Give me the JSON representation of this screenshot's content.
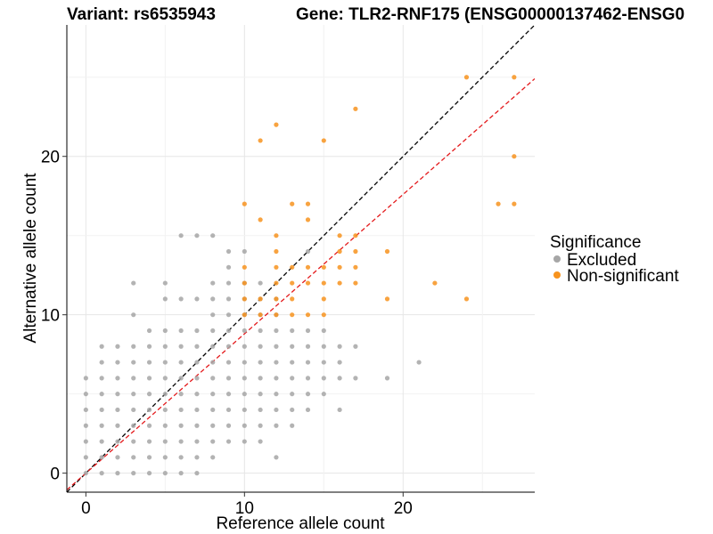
{
  "chart_data": {
    "type": "scatter",
    "title_left": "Variant: rs6535943",
    "title_right": "Gene: TLR2-RNF175 (ENSG00000137462-ENSG0",
    "xlabel": "Reference allele count",
    "ylabel": "Alternative allele count",
    "xlim": [
      -1.2,
      28.3
    ],
    "ylim": [
      -1.2,
      28.3
    ],
    "x_ticks": [
      0,
      10,
      20
    ],
    "y_ticks": [
      0,
      10,
      20
    ],
    "grid": true,
    "legend": {
      "title": "Significance",
      "placement": "right",
      "entries": [
        {
          "label": "Excluded",
          "color": "#a6a6a6"
        },
        {
          "label": "Non-significant",
          "color": "#f7931e"
        }
      ]
    },
    "reference_lines": [
      {
        "slope": 1.0,
        "intercept": 0,
        "color": "#000000",
        "style": "dashed"
      },
      {
        "slope": 0.88,
        "intercept": 0,
        "color": "#e41a1c",
        "style": "dashed"
      }
    ],
    "series": [
      {
        "name": "Excluded",
        "color": "#a6a6a6",
        "points": [
          [
            0,
            0
          ],
          [
            0,
            1
          ],
          [
            0,
            2
          ],
          [
            0,
            3
          ],
          [
            0,
            4
          ],
          [
            0,
            5
          ],
          [
            0,
            6
          ],
          [
            1,
            0
          ],
          [
            1,
            1
          ],
          [
            1,
            2
          ],
          [
            1,
            3
          ],
          [
            1,
            4
          ],
          [
            1,
            5
          ],
          [
            1,
            6
          ],
          [
            1,
            7
          ],
          [
            1,
            8
          ],
          [
            2,
            0
          ],
          [
            2,
            1
          ],
          [
            2,
            2
          ],
          [
            2,
            3
          ],
          [
            2,
            4
          ],
          [
            2,
            5
          ],
          [
            2,
            6
          ],
          [
            2,
            7
          ],
          [
            2,
            8
          ],
          [
            3,
            0
          ],
          [
            3,
            1
          ],
          [
            3,
            2
          ],
          [
            3,
            3
          ],
          [
            3,
            4
          ],
          [
            3,
            5
          ],
          [
            3,
            6
          ],
          [
            3,
            7
          ],
          [
            3,
            8
          ],
          [
            3,
            10
          ],
          [
            3,
            12
          ],
          [
            4,
            0
          ],
          [
            4,
            1
          ],
          [
            4,
            2
          ],
          [
            4,
            3
          ],
          [
            4,
            4
          ],
          [
            4,
            5
          ],
          [
            4,
            6
          ],
          [
            4,
            7
          ],
          [
            4,
            8
          ],
          [
            4,
            9
          ],
          [
            5,
            0
          ],
          [
            5,
            1
          ],
          [
            5,
            2
          ],
          [
            5,
            3
          ],
          [
            5,
            4
          ],
          [
            5,
            5
          ],
          [
            5,
            6
          ],
          [
            5,
            7
          ],
          [
            5,
            8
          ],
          [
            5,
            9
          ],
          [
            5,
            11
          ],
          [
            5,
            12
          ],
          [
            6,
            0
          ],
          [
            6,
            1
          ],
          [
            6,
            2
          ],
          [
            6,
            3
          ],
          [
            6,
            4
          ],
          [
            6,
            5
          ],
          [
            6,
            6
          ],
          [
            6,
            7
          ],
          [
            6,
            8
          ],
          [
            6,
            9
          ],
          [
            6,
            11
          ],
          [
            6,
            15
          ],
          [
            7,
            0
          ],
          [
            7,
            1
          ],
          [
            7,
            2
          ],
          [
            7,
            3
          ],
          [
            7,
            4
          ],
          [
            7,
            5
          ],
          [
            7,
            6
          ],
          [
            7,
            7
          ],
          [
            7,
            8
          ],
          [
            7,
            9
          ],
          [
            7,
            11
          ],
          [
            7,
            15
          ],
          [
            8,
            1
          ],
          [
            8,
            2
          ],
          [
            8,
            3
          ],
          [
            8,
            4
          ],
          [
            8,
            5
          ],
          [
            8,
            6
          ],
          [
            8,
            7
          ],
          [
            8,
            8
          ],
          [
            8,
            9
          ],
          [
            8,
            10
          ],
          [
            8,
            11
          ],
          [
            8,
            12
          ],
          [
            8,
            15
          ],
          [
            9,
            2
          ],
          [
            9,
            3
          ],
          [
            9,
            4
          ],
          [
            9,
            5
          ],
          [
            9,
            6
          ],
          [
            9,
            7
          ],
          [
            9,
            8
          ],
          [
            9,
            9
          ],
          [
            9,
            10
          ],
          [
            9,
            11
          ],
          [
            9,
            12
          ],
          [
            9,
            13
          ],
          [
            9,
            14
          ],
          [
            10,
            2
          ],
          [
            10,
            3
          ],
          [
            10,
            4
          ],
          [
            10,
            5
          ],
          [
            10,
            6
          ],
          [
            10,
            7
          ],
          [
            10,
            8
          ],
          [
            10,
            9
          ],
          [
            10,
            10
          ],
          [
            10,
            11
          ],
          [
            10,
            12
          ],
          [
            10,
            14
          ],
          [
            11,
            2
          ],
          [
            11,
            3
          ],
          [
            11,
            4
          ],
          [
            11,
            5
          ],
          [
            11,
            6
          ],
          [
            11,
            7
          ],
          [
            11,
            8
          ],
          [
            11,
            9
          ],
          [
            11,
            10
          ],
          [
            11,
            11
          ],
          [
            11,
            12
          ],
          [
            12,
            1
          ],
          [
            12,
            3
          ],
          [
            12,
            4
          ],
          [
            12,
            5
          ],
          [
            12,
            6
          ],
          [
            12,
            7
          ],
          [
            12,
            8
          ],
          [
            12,
            9
          ],
          [
            12,
            10
          ],
          [
            12,
            11
          ],
          [
            13,
            3
          ],
          [
            13,
            4
          ],
          [
            13,
            5
          ],
          [
            13,
            6
          ],
          [
            13,
            7
          ],
          [
            13,
            8
          ],
          [
            13,
            9
          ],
          [
            14,
            4
          ],
          [
            14,
            5
          ],
          [
            14,
            6
          ],
          [
            14,
            7
          ],
          [
            14,
            8
          ],
          [
            14,
            9
          ],
          [
            14,
            14
          ],
          [
            15,
            5
          ],
          [
            15,
            6
          ],
          [
            15,
            7
          ],
          [
            15,
            8
          ],
          [
            15,
            9
          ],
          [
            16,
            4
          ],
          [
            16,
            6
          ],
          [
            16,
            7
          ],
          [
            16,
            8
          ],
          [
            17,
            6
          ],
          [
            17,
            8
          ],
          [
            19,
            6
          ],
          [
            21,
            7
          ]
        ]
      },
      {
        "name": "Non-significant",
        "color": "#f7931e",
        "points": [
          [
            10,
            10
          ],
          [
            10,
            11
          ],
          [
            10,
            12
          ],
          [
            10,
            13
          ],
          [
            10,
            17
          ],
          [
            11,
            10
          ],
          [
            11,
            11
          ],
          [
            11,
            16
          ],
          [
            11,
            21
          ],
          [
            12,
            10
          ],
          [
            12,
            11
          ],
          [
            12,
            12
          ],
          [
            12,
            13
          ],
          [
            12,
            14
          ],
          [
            12,
            15
          ],
          [
            12,
            22
          ],
          [
            13,
            10
          ],
          [
            13,
            11
          ],
          [
            13,
            12
          ],
          [
            13,
            13
          ],
          [
            13,
            17
          ],
          [
            14,
            10
          ],
          [
            14,
            12
          ],
          [
            14,
            13
          ],
          [
            14,
            16
          ],
          [
            14,
            17
          ],
          [
            15,
            10
          ],
          [
            15,
            11
          ],
          [
            15,
            12
          ],
          [
            15,
            13
          ],
          [
            15,
            21
          ],
          [
            16,
            12
          ],
          [
            16,
            13
          ],
          [
            16,
            14
          ],
          [
            16,
            15
          ],
          [
            17,
            12
          ],
          [
            17,
            13
          ],
          [
            17,
            14
          ],
          [
            17,
            15
          ],
          [
            17,
            23
          ],
          [
            19,
            11
          ],
          [
            19,
            14
          ],
          [
            22,
            12
          ],
          [
            24,
            11
          ],
          [
            24,
            25
          ],
          [
            26,
            17
          ],
          [
            27,
            17
          ],
          [
            27,
            20
          ],
          [
            27,
            25
          ]
        ]
      }
    ]
  }
}
